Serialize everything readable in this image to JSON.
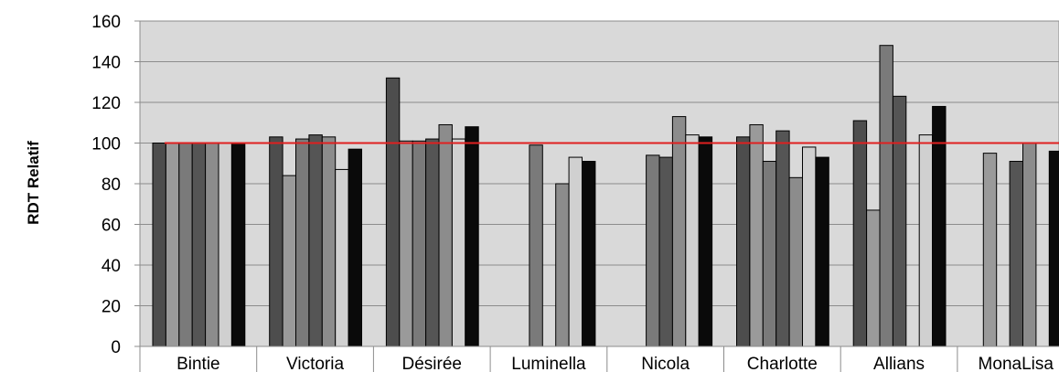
{
  "chart_data": {
    "type": "bar",
    "ylabel": "RDT Relatif",
    "ylim": [
      0,
      160
    ],
    "yticks": [
      0,
      20,
      40,
      60,
      80,
      100,
      120,
      140,
      160
    ],
    "grid": true,
    "reference_line": {
      "value": 100,
      "color": "#e02020"
    },
    "categories": [
      "Bintie",
      "Victoria",
      "Désirée",
      "Luminella",
      "Nicola",
      "Charlotte",
      "Allians",
      "MonaLisa"
    ],
    "series": [
      {
        "color": "#4d4d4d",
        "values": [
          100,
          103,
          132,
          null,
          null,
          103,
          111,
          null
        ]
      },
      {
        "color": "#9a9a9a",
        "values": [
          100,
          84,
          101,
          null,
          null,
          109,
          67,
          95
        ]
      },
      {
        "color": "#7a7a7a",
        "values": [
          100,
          102,
          101,
          99,
          94,
          91,
          148,
          null
        ]
      },
      {
        "color": "#555555",
        "values": [
          100,
          104,
          102,
          null,
          93,
          106,
          123,
          91
        ]
      },
      {
        "color": "#8c8c8c",
        "values": [
          100,
          103,
          109,
          80,
          113,
          83,
          null,
          100
        ]
      },
      {
        "color": "#d0d0d0",
        "values": [
          100,
          87,
          102,
          93,
          104,
          98,
          104,
          null
        ]
      },
      {
        "color": "#0a0a0a",
        "values": [
          100,
          97,
          108,
          91,
          103,
          93,
          118,
          96
        ]
      }
    ]
  }
}
